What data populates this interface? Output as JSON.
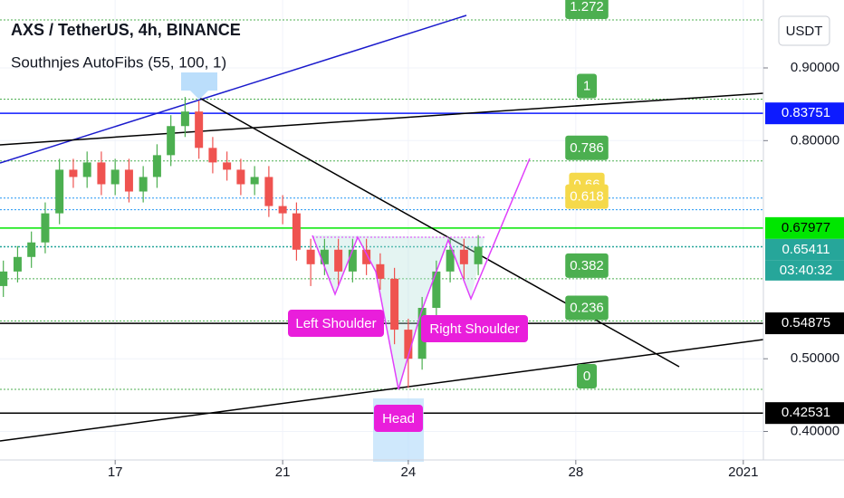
{
  "chart_data": {
    "type": "candlestick",
    "title": "AXS / TetherUS, 4h, BINANCE",
    "subtitle": "Southnjes AutoFibs (55, 100, 1)",
    "currency_button": "USDT",
    "countdown": "03:40:32",
    "up_color": "#4caf50",
    "down_color": "#ef5350",
    "x": [
      14.33,
      14.67,
      15.0,
      15.33,
      15.67,
      16.0,
      16.33,
      16.67,
      17.0,
      17.33,
      17.67,
      18.0,
      18.33,
      18.67,
      19.0,
      19.33,
      19.67,
      20.0,
      20.33,
      20.67,
      21.0,
      21.33,
      21.67,
      22.0,
      22.33,
      22.67,
      23.0,
      23.33,
      23.67,
      24.0,
      24.33,
      24.67,
      25.0,
      25.33,
      25.67
    ],
    "open": [
      0.6,
      0.62,
      0.64,
      0.66,
      0.7,
      0.76,
      0.75,
      0.77,
      0.74,
      0.76,
      0.73,
      0.75,
      0.78,
      0.82,
      0.84,
      0.79,
      0.77,
      0.76,
      0.74,
      0.75,
      0.71,
      0.7,
      0.65,
      0.63,
      0.65,
      0.62,
      0.65,
      0.63,
      0.61,
      0.54,
      0.5,
      0.57,
      0.62,
      0.65,
      0.63
    ],
    "high": [
      0.635,
      0.655,
      0.675,
      0.715,
      0.775,
      0.775,
      0.785,
      0.785,
      0.775,
      0.775,
      0.765,
      0.795,
      0.835,
      0.86,
      0.855,
      0.805,
      0.785,
      0.775,
      0.765,
      0.765,
      0.725,
      0.715,
      0.665,
      0.665,
      0.665,
      0.665,
      0.665,
      0.645,
      0.625,
      0.555,
      0.585,
      0.635,
      0.665,
      0.665,
      0.67
    ],
    "low": [
      0.585,
      0.605,
      0.625,
      0.645,
      0.685,
      0.735,
      0.735,
      0.725,
      0.725,
      0.715,
      0.715,
      0.735,
      0.765,
      0.805,
      0.775,
      0.755,
      0.745,
      0.725,
      0.725,
      0.695,
      0.685,
      0.635,
      0.6,
      0.615,
      0.6,
      0.605,
      0.615,
      0.595,
      0.52,
      0.46,
      0.485,
      0.555,
      0.605,
      0.61,
      0.615
    ],
    "close": [
      0.62,
      0.64,
      0.66,
      0.7,
      0.76,
      0.75,
      0.77,
      0.74,
      0.76,
      0.73,
      0.75,
      0.78,
      0.82,
      0.84,
      0.79,
      0.77,
      0.76,
      0.74,
      0.75,
      0.71,
      0.7,
      0.65,
      0.63,
      0.65,
      0.62,
      0.65,
      0.63,
      0.61,
      0.54,
      0.5,
      0.57,
      0.62,
      0.65,
      0.63,
      0.654
    ],
    "xlim": [
      14.25,
      32.48
    ],
    "xticks": [
      17,
      21,
      24,
      28,
      {
        "value": 32,
        "label": "2021"
      }
    ],
    "ylim": [
      0.3608,
      0.9934
    ],
    "yticks": [
      {
        "value": 0.9,
        "label": "0.90000"
      },
      {
        "value": 0.8,
        "label": "0.80000"
      },
      {
        "value": 0.5,
        "label": "0.50000"
      },
      {
        "value": 0.4,
        "label": "0.40000"
      }
    ],
    "grid": true,
    "price_lines": [
      {
        "price": 0.83751,
        "color": "#0d1bff"
      },
      {
        "price": 0.67977,
        "color": "#00e600"
      },
      {
        "price": 0.65411,
        "color": "#26a69a"
      },
      {
        "price": 0.54875,
        "color": "#000000"
      },
      {
        "price": 0.42531,
        "color": "#000000"
      }
    ],
    "fibs": [
      {
        "level": 1.272,
        "price": 0.966,
        "color": "#4caf50"
      },
      {
        "level": 1,
        "price": 0.857,
        "color": "#4caf50"
      },
      {
        "level": 0.786,
        "price": 0.772,
        "color": "#4caf50"
      },
      {
        "level": 0.66,
        "price": 0.721,
        "color": "#f5d94a"
      },
      {
        "level": 0.618,
        "price": 0.705,
        "color": "#f5d94a"
      },
      {
        "level": 0.382,
        "price": 0.61,
        "color": "#4caf50"
      },
      {
        "level": 0.236,
        "price": 0.552,
        "color": "#4caf50"
      },
      {
        "level": 0,
        "price": 0.458,
        "color": "#4caf50"
      }
    ],
    "annotations": [
      "Left Shoulder",
      "Head",
      "Right Shoulder"
    ]
  }
}
